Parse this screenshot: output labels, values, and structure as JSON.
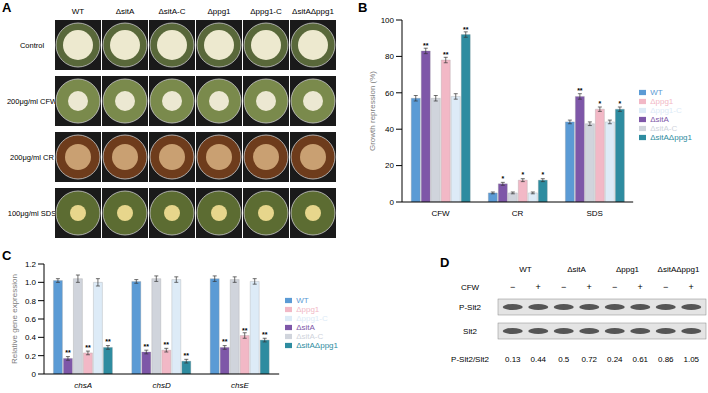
{
  "panel_labels": [
    "A",
    "B",
    "C",
    "D"
  ],
  "plates": {
    "columns": [
      "WT",
      "ΔsitA",
      "ΔsitA-C",
      "Δppg1",
      "Δppg1-C",
      "ΔsitAΔppg1"
    ],
    "rows": [
      "Control",
      "200μg/ml CFW",
      "200μg/ml CR",
      "100μg/ml SDS"
    ]
  },
  "chart_data": [
    {
      "type": "bar",
      "y_label": "Growth repression (%)",
      "categories": [
        "CFW",
        "CR",
        "SDS"
      ],
      "ylim": [
        0,
        100
      ],
      "yticks": [
        0,
        20,
        40,
        60,
        80,
        100
      ],
      "legend": "right",
      "series": [
        {
          "name": "WT",
          "color": "#5b9bd5",
          "values": [
            57,
            5,
            44
          ],
          "errors": [
            1.5,
            0.5,
            1
          ],
          "significance": [
            null,
            null,
            null
          ]
        },
        {
          "name": "ΔsitA",
          "color": "#7e57a8",
          "values": [
            83,
            10,
            58
          ],
          "errors": [
            1.5,
            0.8,
            1.5
          ],
          "significance": [
            "**",
            "*",
            "**"
          ]
        },
        {
          "name": "ΔsitA-C",
          "color": "#d0d4dc",
          "values": [
            57,
            5,
            43
          ],
          "errors": [
            1.5,
            0.5,
            1
          ],
          "significance": [
            null,
            null,
            null
          ]
        },
        {
          "name": "Δppg1",
          "color": "#f2b8c6",
          "values": [
            78,
            12,
            51
          ],
          "errors": [
            1.5,
            0.8,
            1.2
          ],
          "significance": [
            "**",
            "*",
            "*"
          ]
        },
        {
          "name": "Δppg1-C",
          "color": "#ddebf7",
          "values": [
            58,
            5,
            44
          ],
          "errors": [
            1.5,
            0.5,
            1
          ],
          "significance": [
            null,
            null,
            null
          ]
        },
        {
          "name": "ΔsitAΔppg1",
          "color": "#2e8ca0",
          "values": [
            92,
            12,
            51
          ],
          "errors": [
            1.5,
            0.8,
            1.2
          ],
          "significance": [
            "**",
            "*",
            "*"
          ]
        }
      ]
    },
    {
      "type": "bar",
      "y_label": "Relative gene expression",
      "categories": [
        "chsA",
        "chsD",
        "chsE"
      ],
      "ylim": [
        0,
        1.2
      ],
      "yticks": [
        0,
        0.2,
        0.4,
        0.6,
        0.8,
        {
          "value": 1,
          "label": "1.0"
        },
        1.2
      ],
      "legend": "right",
      "series": [
        {
          "name": "WT",
          "color": "#5b9bd5",
          "values": [
            1.02,
            1.01,
            1.04
          ],
          "errors": [
            0.02,
            0.02,
            0.03
          ],
          "significance": [
            null,
            null,
            null
          ]
        },
        {
          "name": "ΔsitA",
          "color": "#7e57a8",
          "values": [
            0.17,
            0.24,
            0.29
          ],
          "errors": [
            0.02,
            0.02,
            0.02
          ],
          "significance": [
            "**",
            "**",
            "**"
          ]
        },
        {
          "name": "ΔsitA-C",
          "color": "#d0d4dc",
          "values": [
            1.04,
            1.04,
            1.03
          ],
          "errors": [
            0.04,
            0.03,
            0.03
          ],
          "significance": [
            null,
            null,
            null
          ]
        },
        {
          "name": "Δppg1",
          "color": "#f2b8c6",
          "values": [
            0.23,
            0.26,
            0.42
          ],
          "errors": [
            0.02,
            0.02,
            0.03
          ],
          "significance": [
            "**",
            "**",
            "**"
          ]
        },
        {
          "name": "Δppg1-C",
          "color": "#ddebf7",
          "values": [
            1.0,
            1.03,
            1.01
          ],
          "errors": [
            0.04,
            0.03,
            0.03
          ],
          "significance": [
            null,
            null,
            null
          ]
        },
        {
          "name": "ΔsitAΔppg1",
          "color": "#2e8ca0",
          "values": [
            0.29,
            0.14,
            0.37
          ],
          "errors": [
            0.02,
            0.02,
            0.02
          ],
          "significance": [
            "**",
            "**",
            "**"
          ]
        }
      ]
    }
  ],
  "blot": {
    "lanes": [
      "WT",
      "ΔsitA",
      "Δppg1",
      "ΔsitAΔppg1"
    ],
    "treatment": "CFW",
    "treatment_signs": [
      "−",
      "+"
    ],
    "rows": [
      "P-Slt2",
      "Slt2"
    ],
    "ratio_label": "P-Slt2/Slt2",
    "ratios": [
      0.13,
      0.44,
      0.5,
      0.72,
      0.24,
      0.61,
      0.86,
      1.05
    ]
  }
}
